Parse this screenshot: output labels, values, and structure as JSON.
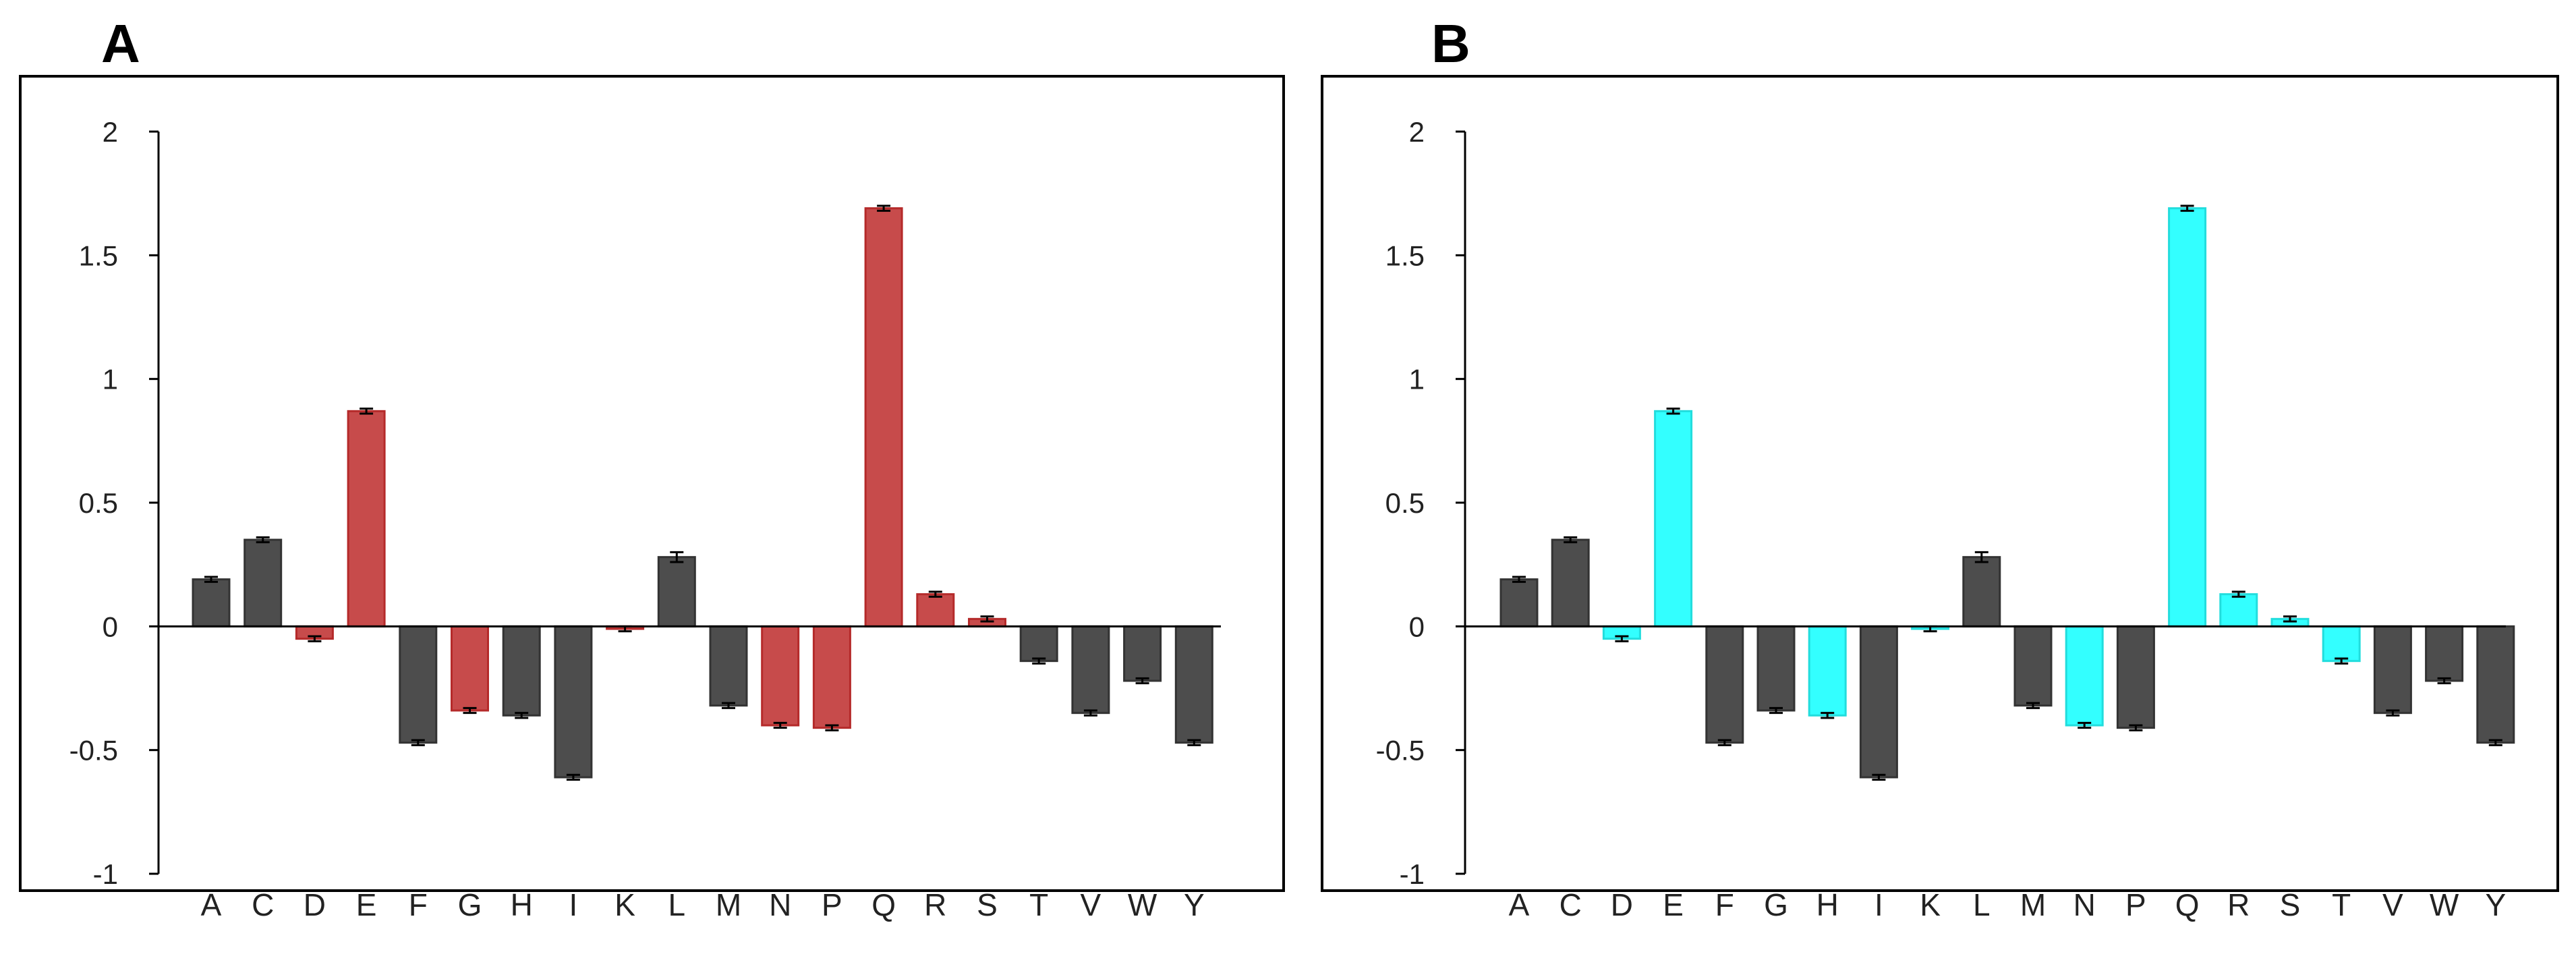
{
  "panels": [
    {
      "label": "A",
      "highlight_color": "#c74b4b",
      "highlight_stroke": "#b52a2a"
    },
    {
      "label": "B",
      "highlight_color": "#33ffff",
      "highlight_stroke": "#22dddd"
    }
  ],
  "colors": {
    "base_bar": "#4d4d4d",
    "base_stroke": "#333333",
    "frame": "#000000",
    "errorbar": "#000000"
  },
  "chart_data": [
    {
      "type": "bar",
      "title": "A",
      "xlabel": "",
      "ylabel": "",
      "ylim": [
        -1,
        2
      ],
      "yticks": [
        -1,
        -0.5,
        0,
        0.5,
        1,
        1.5,
        2
      ],
      "ytick_labels": [
        "-1",
        "-0.5",
        "0",
        "0.5",
        "1",
        "1.5",
        "2"
      ],
      "categories": [
        "A",
        "C",
        "D",
        "E",
        "F",
        "G",
        "H",
        "I",
        "K",
        "L",
        "M",
        "N",
        "P",
        "Q",
        "R",
        "S",
        "T",
        "V",
        "W",
        "Y"
      ],
      "values": [
        0.19,
        0.35,
        -0.05,
        0.87,
        -0.47,
        -0.34,
        -0.36,
        -0.61,
        -0.01,
        0.28,
        -0.32,
        -0.4,
        -0.41,
        1.69,
        0.13,
        0.03,
        -0.14,
        -0.35,
        -0.22,
        -0.47
      ],
      "errors": [
        0.01,
        0.01,
        0.01,
        0.01,
        0.01,
        0.01,
        0.01,
        0.01,
        0.01,
        0.02,
        0.01,
        0.01,
        0.01,
        0.01,
        0.01,
        0.01,
        0.01,
        0.01,
        0.01,
        0.01
      ],
      "highlighted": [
        "D",
        "E",
        "G",
        "K",
        "N",
        "P",
        "Q",
        "R",
        "S"
      ]
    },
    {
      "type": "bar",
      "title": "B",
      "xlabel": "",
      "ylabel": "",
      "ylim": [
        -1,
        2
      ],
      "yticks": [
        -1,
        -0.5,
        0,
        0.5,
        1,
        1.5,
        2
      ],
      "ytick_labels": [
        "-1",
        "-0.5",
        "0",
        "0.5",
        "1",
        "1.5",
        "2"
      ],
      "categories": [
        "A",
        "C",
        "D",
        "E",
        "F",
        "G",
        "H",
        "I",
        "K",
        "L",
        "M",
        "N",
        "P",
        "Q",
        "R",
        "S",
        "T",
        "V",
        "W",
        "Y"
      ],
      "values": [
        0.19,
        0.35,
        -0.05,
        0.87,
        -0.47,
        -0.34,
        -0.36,
        -0.61,
        -0.01,
        0.28,
        -0.32,
        -0.4,
        -0.41,
        1.69,
        0.13,
        0.03,
        -0.14,
        -0.35,
        -0.22,
        -0.47
      ],
      "errors": [
        0.01,
        0.01,
        0.01,
        0.01,
        0.01,
        0.01,
        0.01,
        0.01,
        0.01,
        0.02,
        0.01,
        0.01,
        0.01,
        0.01,
        0.01,
        0.01,
        0.01,
        0.01,
        0.01,
        0.01
      ],
      "highlighted": [
        "D",
        "E",
        "H",
        "K",
        "N",
        "Q",
        "R",
        "S",
        "T"
      ]
    }
  ]
}
